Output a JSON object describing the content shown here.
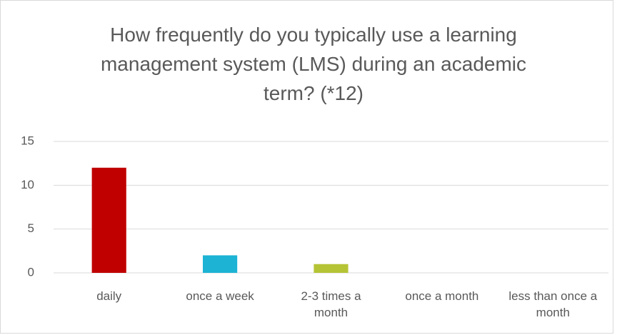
{
  "chart_data": {
    "type": "bar",
    "title": "How frequently do you typically use a learning management system (LMS) during an academic term? (*12)",
    "categories": [
      "daily",
      "once a week",
      "2-3 times a month",
      "once a month",
      "less than once a month"
    ],
    "values": [
      12,
      2,
      1,
      0,
      0
    ],
    "colors": [
      "#c00000",
      "#1cb3d4",
      "#b5c435",
      "#7f7f7f",
      "#7f7f7f"
    ],
    "ylim": [
      0,
      15
    ],
    "yticks": [
      0,
      5,
      10,
      15
    ],
    "grid": true
  }
}
